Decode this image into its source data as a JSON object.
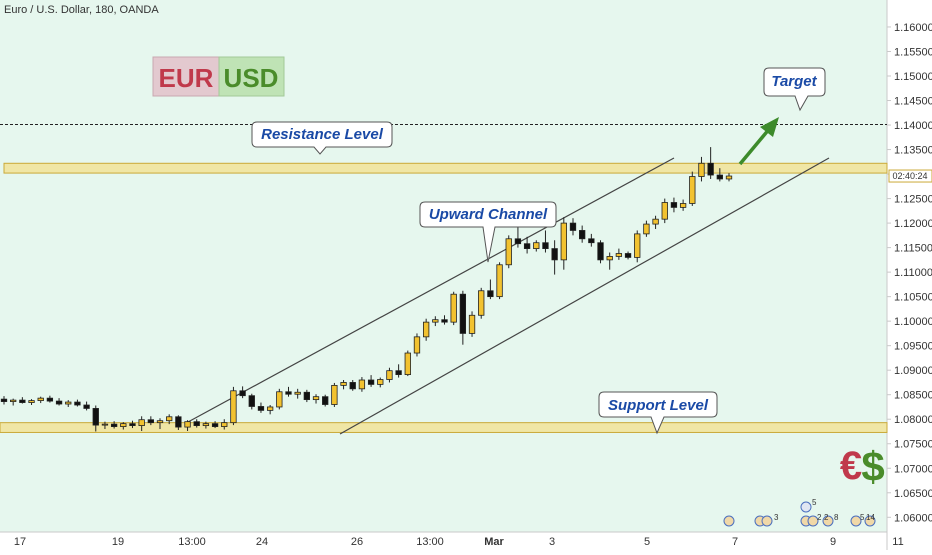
{
  "header": {
    "symbol_title": "Euro / U.S. Dollar, 180, OANDA"
  },
  "badge": {
    "left": "EUR",
    "right": "USD"
  },
  "callouts": {
    "resistance": "Resistance Level",
    "channel": "Upward Channel",
    "target": "Target",
    "support": "Support Level"
  },
  "currency_icons": {
    "euro": "€",
    "dollar": "$"
  },
  "countdown": "02:40:24",
  "event_counts": [
    "3",
    "2",
    "2",
    "8",
    "5",
    "14",
    "5"
  ],
  "colors": {
    "background": "#e6f7ee",
    "band_fill": "#f3e08c",
    "band_stroke": "#caa938",
    "callout_text": "#1a4aa6",
    "up_candle": "#f2c230",
    "down_candle": "#111111",
    "arrow": "#3d8b2b",
    "euro": "#c0394b",
    "dollar": "#4a8c2a"
  },
  "chart_data": {
    "type": "candlestick",
    "title": "Euro / U.S. Dollar, 180, OANDA",
    "ylim": [
      1.057,
      1.1655
    ],
    "y_ticks": [
      "1.16000",
      "1.15500",
      "1.15000",
      "1.14500",
      "1.14000",
      "1.13500",
      "1.13000",
      "1.12500",
      "1.12000",
      "1.11500",
      "1.11000",
      "1.10500",
      "1.10000",
      "1.09500",
      "1.09000",
      "1.08500",
      "1.08000",
      "1.07500",
      "1.07000",
      "1.06500",
      "1.06000"
    ],
    "x_ticks": [
      "17",
      "19",
      "13:00",
      "24",
      "26",
      "13:00",
      "Mar",
      "3",
      "5",
      "7",
      "9",
      "11"
    ],
    "grid": false,
    "resistance_zone": [
      1.1302,
      1.1322
    ],
    "support_zone": [
      1.0773,
      1.0793
    ],
    "target_line": 1.1401,
    "channel_upper": {
      "start": 1.0795,
      "end": 1.1312
    },
    "channel_lower": {
      "start": 1.0793,
      "end": 1.1312
    },
    "candles": [
      {
        "o": 1.0841,
        "h": 1.0847,
        "l": 1.083,
        "c": 1.0836
      },
      {
        "o": 1.0836,
        "h": 1.0842,
        "l": 1.0828,
        "c": 1.0839
      },
      {
        "o": 1.0839,
        "h": 1.0845,
        "l": 1.0832,
        "c": 1.0834
      },
      {
        "o": 1.0834,
        "h": 1.0841,
        "l": 1.0829,
        "c": 1.0838
      },
      {
        "o": 1.0838,
        "h": 1.0846,
        "l": 1.0833,
        "c": 1.0843
      },
      {
        "o": 1.0843,
        "h": 1.0848,
        "l": 1.0834,
        "c": 1.0837
      },
      {
        "o": 1.0837,
        "h": 1.0843,
        "l": 1.0828,
        "c": 1.0831
      },
      {
        "o": 1.0831,
        "h": 1.0839,
        "l": 1.0825,
        "c": 1.0835
      },
      {
        "o": 1.0835,
        "h": 1.084,
        "l": 1.0826,
        "c": 1.0829
      },
      {
        "o": 1.0829,
        "h": 1.0836,
        "l": 1.0818,
        "c": 1.0822
      },
      {
        "o": 1.0822,
        "h": 1.0828,
        "l": 1.0775,
        "c": 1.0788
      },
      {
        "o": 1.0788,
        "h": 1.0795,
        "l": 1.078,
        "c": 1.079
      },
      {
        "o": 1.079,
        "h": 1.0796,
        "l": 1.0781,
        "c": 1.0785
      },
      {
        "o": 1.0785,
        "h": 1.0794,
        "l": 1.0779,
        "c": 1.0791
      },
      {
        "o": 1.0791,
        "h": 1.0797,
        "l": 1.0782,
        "c": 1.0787
      },
      {
        "o": 1.0787,
        "h": 1.0806,
        "l": 1.0776,
        "c": 1.0799
      },
      {
        "o": 1.0799,
        "h": 1.0806,
        "l": 1.0788,
        "c": 1.0793
      },
      {
        "o": 1.0793,
        "h": 1.0802,
        "l": 1.078,
        "c": 1.0797
      },
      {
        "o": 1.0797,
        "h": 1.081,
        "l": 1.079,
        "c": 1.0805
      },
      {
        "o": 1.0805,
        "h": 1.0808,
        "l": 1.0778,
        "c": 1.0784
      },
      {
        "o": 1.0784,
        "h": 1.0798,
        "l": 1.0776,
        "c": 1.0795
      },
      {
        "o": 1.0795,
        "h": 1.08,
        "l": 1.0783,
        "c": 1.0787
      },
      {
        "o": 1.0787,
        "h": 1.0795,
        "l": 1.0781,
        "c": 1.0791
      },
      {
        "o": 1.0791,
        "h": 1.0796,
        "l": 1.0782,
        "c": 1.0785
      },
      {
        "o": 1.0785,
        "h": 1.08,
        "l": 1.0779,
        "c": 1.0793
      },
      {
        "o": 1.0793,
        "h": 1.0866,
        "l": 1.0788,
        "c": 1.0858
      },
      {
        "o": 1.0858,
        "h": 1.0867,
        "l": 1.0843,
        "c": 1.0848
      },
      {
        "o": 1.0848,
        "h": 1.0852,
        "l": 1.082,
        "c": 1.0826
      },
      {
        "o": 1.0826,
        "h": 1.0834,
        "l": 1.0813,
        "c": 1.0818
      },
      {
        "o": 1.0818,
        "h": 1.0829,
        "l": 1.081,
        "c": 1.0825
      },
      {
        "o": 1.0825,
        "h": 1.0862,
        "l": 1.082,
        "c": 1.0856
      },
      {
        "o": 1.0856,
        "h": 1.0866,
        "l": 1.0846,
        "c": 1.0851
      },
      {
        "o": 1.0851,
        "h": 1.0862,
        "l": 1.0842,
        "c": 1.0855
      },
      {
        "o": 1.0855,
        "h": 1.086,
        "l": 1.0835,
        "c": 1.084
      },
      {
        "o": 1.084,
        "h": 1.0851,
        "l": 1.0832,
        "c": 1.0846
      },
      {
        "o": 1.0846,
        "h": 1.085,
        "l": 1.0826,
        "c": 1.083
      },
      {
        "o": 1.083,
        "h": 1.0874,
        "l": 1.0825,
        "c": 1.0869
      },
      {
        "o": 1.0869,
        "h": 1.088,
        "l": 1.0861,
        "c": 1.0875
      },
      {
        "o": 1.0875,
        "h": 1.088,
        "l": 1.0858,
        "c": 1.0862
      },
      {
        "o": 1.0862,
        "h": 1.0886,
        "l": 1.0856,
        "c": 1.088
      },
      {
        "o": 1.088,
        "h": 1.089,
        "l": 1.0866,
        "c": 1.0871
      },
      {
        "o": 1.0871,
        "h": 1.0885,
        "l": 1.0865,
        "c": 1.0881
      },
      {
        "o": 1.0881,
        "h": 1.0905,
        "l": 1.0875,
        "c": 1.0899
      },
      {
        "o": 1.0899,
        "h": 1.0912,
        "l": 1.0885,
        "c": 1.0891
      },
      {
        "o": 1.0891,
        "h": 1.094,
        "l": 1.0888,
        "c": 1.0935
      },
      {
        "o": 1.0935,
        "h": 1.0975,
        "l": 1.0928,
        "c": 1.0968
      },
      {
        "o": 1.0968,
        "h": 1.1005,
        "l": 1.096,
        "c": 1.0998
      },
      {
        "o": 1.0998,
        "h": 1.101,
        "l": 1.099,
        "c": 1.1003
      },
      {
        "o": 1.1003,
        "h": 1.1012,
        "l": 1.0993,
        "c": 1.0998
      },
      {
        "o": 1.0998,
        "h": 1.106,
        "l": 1.0992,
        "c": 1.1055
      },
      {
        "o": 1.1055,
        "h": 1.1062,
        "l": 1.0952,
        "c": 1.0975
      },
      {
        "o": 1.0975,
        "h": 1.102,
        "l": 1.0968,
        "c": 1.1012
      },
      {
        "o": 1.1012,
        "h": 1.1068,
        "l": 1.1005,
        "c": 1.1062
      },
      {
        "o": 1.1062,
        "h": 1.1085,
        "l": 1.1045,
        "c": 1.105
      },
      {
        "o": 1.105,
        "h": 1.112,
        "l": 1.1045,
        "c": 1.1115
      },
      {
        "o": 1.1115,
        "h": 1.1175,
        "l": 1.1108,
        "c": 1.1168
      },
      {
        "o": 1.1168,
        "h": 1.1195,
        "l": 1.115,
        "c": 1.1158
      },
      {
        "o": 1.1158,
        "h": 1.1172,
        "l": 1.1138,
        "c": 1.1148
      },
      {
        "o": 1.1148,
        "h": 1.1165,
        "l": 1.1142,
        "c": 1.116
      },
      {
        "o": 1.116,
        "h": 1.1185,
        "l": 1.114,
        "c": 1.1148
      },
      {
        "o": 1.1148,
        "h": 1.1165,
        "l": 1.1095,
        "c": 1.1125
      },
      {
        "o": 1.1125,
        "h": 1.1212,
        "l": 1.1105,
        "c": 1.12
      },
      {
        "o": 1.12,
        "h": 1.121,
        "l": 1.1175,
        "c": 1.1185
      },
      {
        "o": 1.1185,
        "h": 1.1195,
        "l": 1.116,
        "c": 1.1168
      },
      {
        "o": 1.1168,
        "h": 1.1178,
        "l": 1.1152,
        "c": 1.116
      },
      {
        "o": 1.116,
        "h": 1.1165,
        "l": 1.1118,
        "c": 1.1125
      },
      {
        "o": 1.1125,
        "h": 1.114,
        "l": 1.1105,
        "c": 1.1132
      },
      {
        "o": 1.1132,
        "h": 1.1148,
        "l": 1.1125,
        "c": 1.1138
      },
      {
        "o": 1.1138,
        "h": 1.1142,
        "l": 1.1126,
        "c": 1.113
      },
      {
        "o": 1.113,
        "h": 1.1185,
        "l": 1.112,
        "c": 1.1178
      },
      {
        "o": 1.1178,
        "h": 1.1205,
        "l": 1.1172,
        "c": 1.1198
      },
      {
        "o": 1.1198,
        "h": 1.1215,
        "l": 1.1188,
        "c": 1.1208
      },
      {
        "o": 1.1208,
        "h": 1.125,
        "l": 1.12,
        "c": 1.1242
      },
      {
        "o": 1.1242,
        "h": 1.1252,
        "l": 1.1222,
        "c": 1.1232
      },
      {
        "o": 1.1232,
        "h": 1.1248,
        "l": 1.1225,
        "c": 1.124
      },
      {
        "o": 1.124,
        "h": 1.1305,
        "l": 1.1235,
        "c": 1.1295
      },
      {
        "o": 1.1295,
        "h": 1.1335,
        "l": 1.1285,
        "c": 1.1322
      },
      {
        "o": 1.1322,
        "h": 1.1355,
        "l": 1.129,
        "c": 1.1298
      },
      {
        "o": 1.1298,
        "h": 1.1312,
        "l": 1.1285,
        "c": 1.129
      },
      {
        "o": 1.129,
        "h": 1.1302,
        "l": 1.1285,
        "c": 1.1296
      }
    ]
  }
}
